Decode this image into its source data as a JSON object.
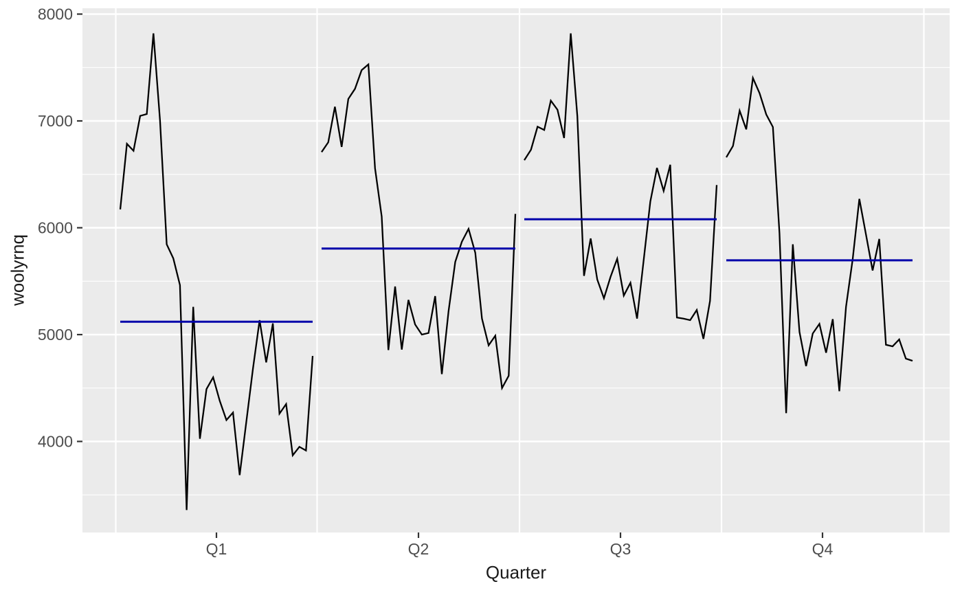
{
  "axes": {
    "x_title": "Quarter",
    "y_title": "woolyrnq"
  },
  "chart_data": {
    "type": "line",
    "subtype": "seasonal-subseries",
    "title": "",
    "xlabel": "Quarter",
    "ylabel": "woolyrnq",
    "categories": [
      "Q1",
      "Q2",
      "Q3",
      "Q4"
    ],
    "ylim": [
      3147,
      8055
    ],
    "y_ticks": [
      8000,
      7000,
      6000,
      5000,
      4000
    ],
    "y_minor_gridlines": [
      7500,
      6500,
      5500,
      4500,
      3500
    ],
    "grid": true,
    "legend": "none",
    "series": [
      {
        "name": "Q1",
        "values": [
          6172,
          6786,
          6720,
          7047,
          7064,
          7819,
          7001,
          5845,
          5714,
          5463,
          3358,
          5260,
          4025,
          4490,
          4600,
          4380,
          4200,
          4270,
          3685,
          4180,
          4680,
          5135,
          4740,
          5105,
          4260,
          4350,
          3870,
          3950,
          3915,
          4800
        ],
        "mean": 5120
      },
      {
        "name": "Q2",
        "values": [
          6709,
          6800,
          7133,
          6757,
          7206,
          7300,
          7475,
          7529,
          6556,
          6105,
          4855,
          5450,
          4860,
          5325,
          5095,
          5000,
          5015,
          5360,
          4630,
          5220,
          5680,
          5870,
          5990,
          5765,
          5150,
          4900,
          4990,
          4500,
          4615,
          6130
        ],
        "mean": 5805
      },
      {
        "name": "Q3",
        "values": [
          6633,
          6730,
          6946,
          6915,
          7190,
          7105,
          6840,
          7819,
          7045,
          5550,
          5900,
          5515,
          5340,
          5540,
          5710,
          5365,
          5485,
          5150,
          5700,
          6245,
          6560,
          6345,
          6590,
          5160,
          5150,
          5135,
          5230,
          4960,
          5315,
          6400
        ],
        "mean": 6080
      },
      {
        "name": "Q4",
        "values": [
          6660,
          6765,
          7095,
          6921,
          7402,
          7259,
          7061,
          6943,
          5947,
          4265,
          5845,
          5025,
          4705,
          5010,
          5100,
          4830,
          5145,
          4470,
          5260,
          5705,
          6270,
          5935,
          5600,
          5895,
          4905,
          4890,
          4955,
          4775,
          4755
        ],
        "mean": 5695
      }
    ],
    "colors": {
      "panel_background": "#EBEBEB",
      "gridline": "#FFFFFF",
      "series_line": "#000000",
      "mean_line": "#0000AA",
      "tick_label": "#4D4D4D",
      "axis_title": "#1A1A1A",
      "tick_mark": "#333333"
    }
  }
}
